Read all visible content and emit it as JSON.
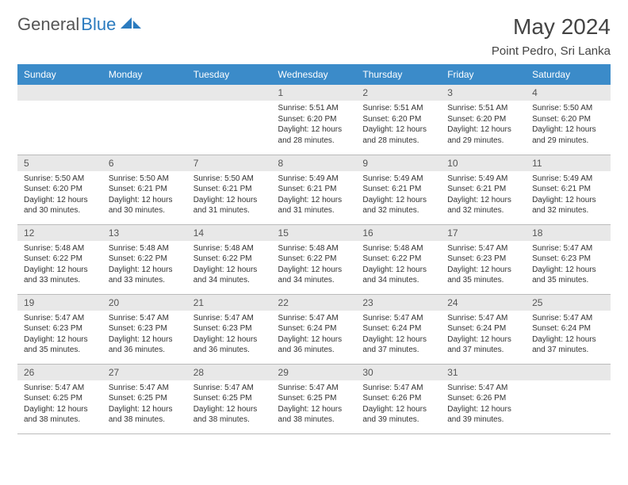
{
  "logo": {
    "part1": "General",
    "part2": "Blue"
  },
  "title": "May 2024",
  "location": "Point Pedro, Sri Lanka",
  "colors": {
    "header_bg": "#3b8bc9",
    "header_text": "#ffffff",
    "daynum_bg": "#e8e8e8",
    "text": "#333333",
    "logo_gray": "#555555",
    "logo_blue": "#2b7bbf"
  },
  "day_headers": [
    "Sunday",
    "Monday",
    "Tuesday",
    "Wednesday",
    "Thursday",
    "Friday",
    "Saturday"
  ],
  "weeks": [
    [
      null,
      null,
      null,
      {
        "num": "1",
        "sunrise": "5:51 AM",
        "sunset": "6:20 PM",
        "daylight": "12 hours and 28 minutes."
      },
      {
        "num": "2",
        "sunrise": "5:51 AM",
        "sunset": "6:20 PM",
        "daylight": "12 hours and 28 minutes."
      },
      {
        "num": "3",
        "sunrise": "5:51 AM",
        "sunset": "6:20 PM",
        "daylight": "12 hours and 29 minutes."
      },
      {
        "num": "4",
        "sunrise": "5:50 AM",
        "sunset": "6:20 PM",
        "daylight": "12 hours and 29 minutes."
      }
    ],
    [
      {
        "num": "5",
        "sunrise": "5:50 AM",
        "sunset": "6:20 PM",
        "daylight": "12 hours and 30 minutes."
      },
      {
        "num": "6",
        "sunrise": "5:50 AM",
        "sunset": "6:21 PM",
        "daylight": "12 hours and 30 minutes."
      },
      {
        "num": "7",
        "sunrise": "5:50 AM",
        "sunset": "6:21 PM",
        "daylight": "12 hours and 31 minutes."
      },
      {
        "num": "8",
        "sunrise": "5:49 AM",
        "sunset": "6:21 PM",
        "daylight": "12 hours and 31 minutes."
      },
      {
        "num": "9",
        "sunrise": "5:49 AM",
        "sunset": "6:21 PM",
        "daylight": "12 hours and 32 minutes."
      },
      {
        "num": "10",
        "sunrise": "5:49 AM",
        "sunset": "6:21 PM",
        "daylight": "12 hours and 32 minutes."
      },
      {
        "num": "11",
        "sunrise": "5:49 AM",
        "sunset": "6:21 PM",
        "daylight": "12 hours and 32 minutes."
      }
    ],
    [
      {
        "num": "12",
        "sunrise": "5:48 AM",
        "sunset": "6:22 PM",
        "daylight": "12 hours and 33 minutes."
      },
      {
        "num": "13",
        "sunrise": "5:48 AM",
        "sunset": "6:22 PM",
        "daylight": "12 hours and 33 minutes."
      },
      {
        "num": "14",
        "sunrise": "5:48 AM",
        "sunset": "6:22 PM",
        "daylight": "12 hours and 34 minutes."
      },
      {
        "num": "15",
        "sunrise": "5:48 AM",
        "sunset": "6:22 PM",
        "daylight": "12 hours and 34 minutes."
      },
      {
        "num": "16",
        "sunrise": "5:48 AM",
        "sunset": "6:22 PM",
        "daylight": "12 hours and 34 minutes."
      },
      {
        "num": "17",
        "sunrise": "5:47 AM",
        "sunset": "6:23 PM",
        "daylight": "12 hours and 35 minutes."
      },
      {
        "num": "18",
        "sunrise": "5:47 AM",
        "sunset": "6:23 PM",
        "daylight": "12 hours and 35 minutes."
      }
    ],
    [
      {
        "num": "19",
        "sunrise": "5:47 AM",
        "sunset": "6:23 PM",
        "daylight": "12 hours and 35 minutes."
      },
      {
        "num": "20",
        "sunrise": "5:47 AM",
        "sunset": "6:23 PM",
        "daylight": "12 hours and 36 minutes."
      },
      {
        "num": "21",
        "sunrise": "5:47 AM",
        "sunset": "6:23 PM",
        "daylight": "12 hours and 36 minutes."
      },
      {
        "num": "22",
        "sunrise": "5:47 AM",
        "sunset": "6:24 PM",
        "daylight": "12 hours and 36 minutes."
      },
      {
        "num": "23",
        "sunrise": "5:47 AM",
        "sunset": "6:24 PM",
        "daylight": "12 hours and 37 minutes."
      },
      {
        "num": "24",
        "sunrise": "5:47 AM",
        "sunset": "6:24 PM",
        "daylight": "12 hours and 37 minutes."
      },
      {
        "num": "25",
        "sunrise": "5:47 AM",
        "sunset": "6:24 PM",
        "daylight": "12 hours and 37 minutes."
      }
    ],
    [
      {
        "num": "26",
        "sunrise": "5:47 AM",
        "sunset": "6:25 PM",
        "daylight": "12 hours and 38 minutes."
      },
      {
        "num": "27",
        "sunrise": "5:47 AM",
        "sunset": "6:25 PM",
        "daylight": "12 hours and 38 minutes."
      },
      {
        "num": "28",
        "sunrise": "5:47 AM",
        "sunset": "6:25 PM",
        "daylight": "12 hours and 38 minutes."
      },
      {
        "num": "29",
        "sunrise": "5:47 AM",
        "sunset": "6:25 PM",
        "daylight": "12 hours and 38 minutes."
      },
      {
        "num": "30",
        "sunrise": "5:47 AM",
        "sunset": "6:26 PM",
        "daylight": "12 hours and 39 minutes."
      },
      {
        "num": "31",
        "sunrise": "5:47 AM",
        "sunset": "6:26 PM",
        "daylight": "12 hours and 39 minutes."
      },
      null
    ]
  ],
  "labels": {
    "sunrise": "Sunrise:",
    "sunset": "Sunset:",
    "daylight": "Daylight:"
  }
}
